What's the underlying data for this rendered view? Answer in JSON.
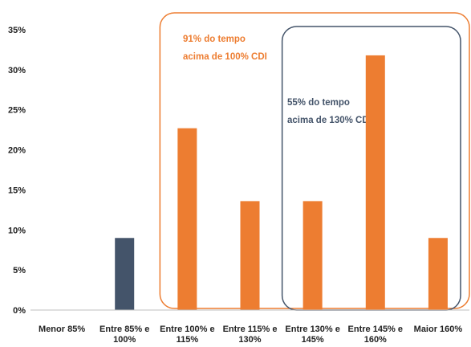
{
  "chart_data": {
    "type": "bar",
    "categories": [
      [
        "Menor 85%"
      ],
      [
        "Entre 85% e",
        "100%"
      ],
      [
        "Entre 100% e",
        "115%"
      ],
      [
        "Entre 115% e",
        "130%"
      ],
      [
        "Entre 130% e",
        "145%"
      ],
      [
        "Entre 145% e",
        "160%"
      ],
      [
        "Maior 160%"
      ]
    ],
    "values": [
      0,
      9,
      22.7,
      13.6,
      13.6,
      31.8,
      9
    ],
    "bar_colors": [
      "#ED7D31",
      "#44546A",
      "#ED7D31",
      "#ED7D31",
      "#ED7D31",
      "#ED7D31",
      "#ED7D31"
    ],
    "ylim": [
      0,
      35
    ],
    "yticks": [
      "0%",
      "5%",
      "10%",
      "15%",
      "20%",
      "25%",
      "30%",
      "35%"
    ],
    "ytick_values": [
      0,
      5,
      10,
      15,
      20,
      25,
      30,
      35
    ],
    "grid": false,
    "annotations": [
      {
        "lines": [
          "91% do tempo",
          "acima de 100% CDI"
        ],
        "color": "#ED7D31",
        "box_color": "#ED7D31",
        "covers_categories": [
          2,
          6
        ]
      },
      {
        "lines": [
          "55% do tempo",
          "acima de 130% CDI"
        ],
        "color": "#44546A",
        "box_color": "#44546A",
        "covers_categories": [
          4,
          6
        ]
      }
    ]
  }
}
